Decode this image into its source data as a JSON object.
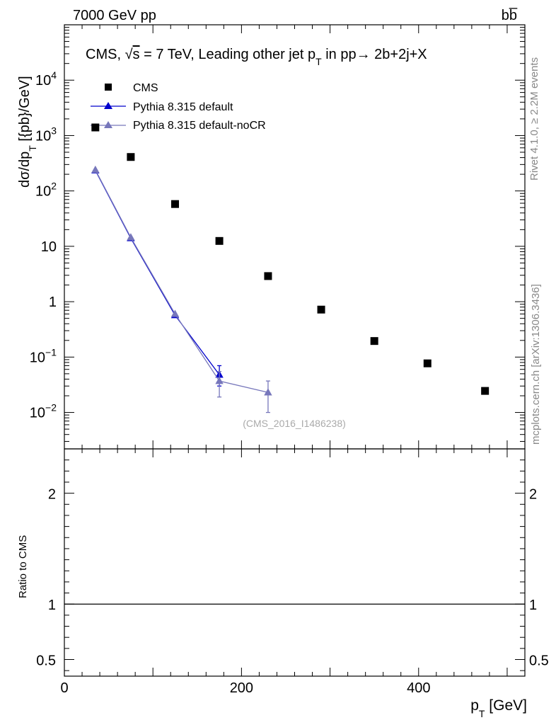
{
  "header": {
    "energy_label": "7000 GeV pp",
    "process_label": "bb̅"
  },
  "side_labels": {
    "rivet": "Rivet 4.1.0, ≥ 2.2M events",
    "mcplots": "mcplots.cern.ch [arXiv:1306.3436]"
  },
  "watermark": "(CMS_2016_I1486238)",
  "chart_data": {
    "type": "scatter",
    "title": "CMS, √s = 7 TeV, Leading other jet p_T in pp→ 2b+2j+X",
    "title_parts": {
      "pre": "CMS, ",
      "sqrt": "√",
      "s": "s",
      "mid": " = 7 TeV, Leading other jet p",
      "sub": "T",
      "post": " in pp→  2b+2j+X"
    },
    "xlabel": "p_T [GeV]",
    "xlabel_parts": {
      "main": "p",
      "sub": "T",
      "unit": " [GeV]"
    },
    "ylabel": "dσ/dp_T [{pb}/GeV]",
    "ylabel_parts": {
      "main": "dσ/dp",
      "sub": "T",
      "unit": " [{pb}/GeV]"
    },
    "xlim": [
      0,
      520
    ],
    "ylim": [
      0.0022,
      100000
    ],
    "yscale": "log",
    "x_ticks": [
      {
        "value": 0,
        "label": "0"
      },
      {
        "value": 200,
        "label": "200"
      },
      {
        "value": 400,
        "label": "400"
      }
    ],
    "y_ticks": [
      {
        "value": 0.01,
        "base": "10",
        "exp": "−2"
      },
      {
        "value": 0.1,
        "base": "10",
        "exp": "−1"
      },
      {
        "value": 1,
        "base": "1",
        "exp": ""
      },
      {
        "value": 10,
        "base": "10",
        "exp": ""
      },
      {
        "value": 100,
        "base": "10",
        "exp": "2"
      },
      {
        "value": 1000,
        "base": "10",
        "exp": "3"
      },
      {
        "value": 10000,
        "base": "10",
        "exp": "4"
      }
    ],
    "legend_position": "top-left",
    "series": [
      {
        "name": "CMS",
        "style": "marker",
        "marker": "square",
        "color": "#000000",
        "x": [
          35,
          75,
          125,
          175,
          230,
          290,
          350,
          410,
          475
        ],
        "y": [
          1400,
          410,
          58,
          12.5,
          2.9,
          0.72,
          0.195,
          0.077,
          0.0245
        ]
      },
      {
        "name": "Pythia 8.315 default",
        "style": "line-marker",
        "marker": "triangle",
        "color": "#0000cc",
        "x": [
          35,
          75,
          125,
          175
        ],
        "y": [
          235,
          14,
          0.57,
          0.048
        ],
        "err_low": [
          0,
          0,
          0,
          0.018
        ],
        "err_high": [
          0,
          0,
          0,
          0.022
        ]
      },
      {
        "name": "Pythia 8.315 default-noCR",
        "style": "line-marker",
        "marker": "triangle",
        "color": "#7777bb",
        "x": [
          35,
          75,
          125,
          175,
          230
        ],
        "y": [
          240,
          14.5,
          0.6,
          0.037,
          0.023
        ],
        "err_low": [
          0,
          0,
          0,
          0.018,
          0.013
        ],
        "err_high": [
          0,
          0,
          0,
          0.018,
          0.014
        ]
      }
    ],
    "ratio_panel": {
      "ylabel": "Ratio to CMS",
      "ylim": [
        0.35,
        2.4
      ],
      "y_ticks": [
        {
          "value": 0.5,
          "label": "0.5"
        },
        {
          "value": 1,
          "label": "1"
        },
        {
          "value": 2,
          "label": "2"
        }
      ],
      "reference_line": 1
    }
  }
}
